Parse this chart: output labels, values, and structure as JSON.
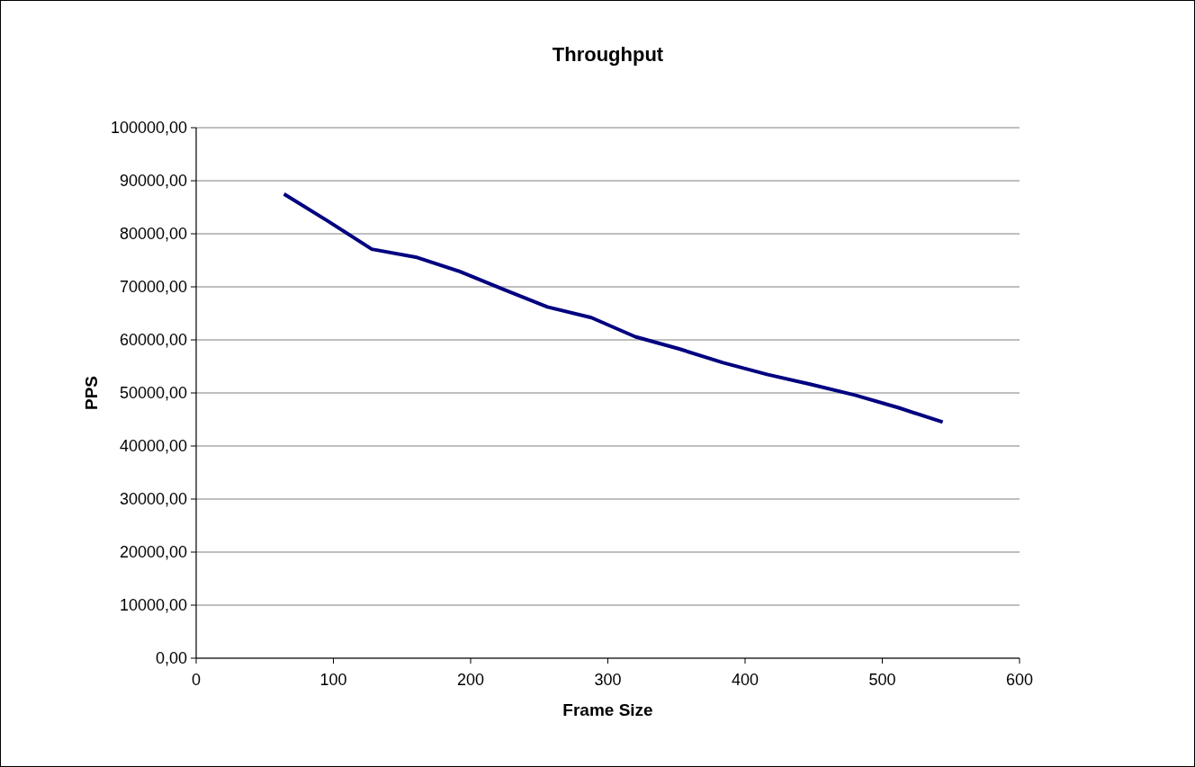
{
  "chart_data": {
    "type": "line",
    "title": "Throughput",
    "xlabel": "Frame Size",
    "ylabel": "PPS",
    "x": [
      64,
      96,
      128,
      160,
      192,
      224,
      256,
      288,
      320,
      352,
      384,
      416,
      448,
      480,
      512,
      544
    ],
    "series": [
      {
        "color": "#000080",
        "values": [
          87500,
          82400,
          77100,
          75600,
          72900,
          69500,
          66200,
          64200,
          60600,
          58300,
          55700,
          53500,
          51600,
          49600,
          47200,
          44500
        ]
      }
    ],
    "xlim": [
      0,
      600
    ],
    "xticks": [
      0,
      100,
      200,
      300,
      400,
      500,
      600
    ],
    "ylim": [
      0,
      100000
    ],
    "yticks": [
      {
        "value": 0,
        "label": "0,00"
      },
      {
        "value": 10000,
        "label": "10000,00"
      },
      {
        "value": 20000,
        "label": "20000,00"
      },
      {
        "value": 30000,
        "label": "30000,00"
      },
      {
        "value": 40000,
        "label": "40000,00"
      },
      {
        "value": 50000,
        "label": "50000,00"
      },
      {
        "value": 60000,
        "label": "60000,00"
      },
      {
        "value": 70000,
        "label": "70000,00"
      },
      {
        "value": 80000,
        "label": "80000,00"
      },
      {
        "value": 90000,
        "label": "90000,00"
      },
      {
        "value": 100000,
        "label": "100000,00"
      }
    ],
    "grid": "y",
    "marker": "none",
    "line_style": "solid"
  }
}
